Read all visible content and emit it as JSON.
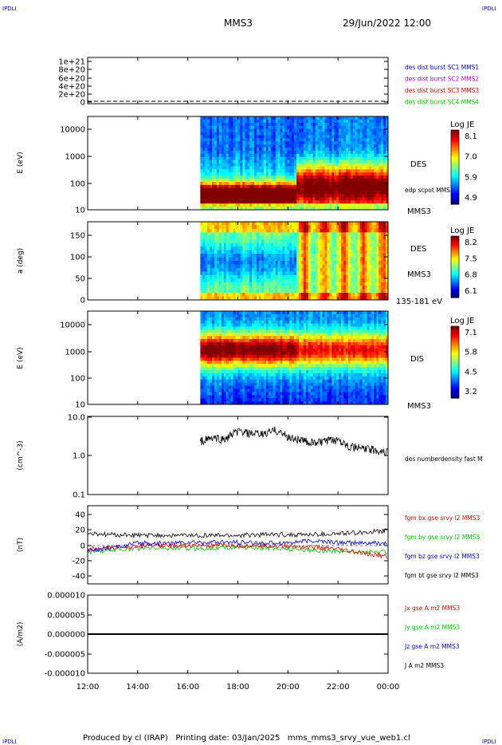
{
  "corner_label": "IPDLI",
  "header": {
    "title": "MMS3",
    "datetime": "29/Jun/2022 12:00"
  },
  "footer": "Produced by cl (IRAP)   Printing date: 03/Jan/2025   mms_mms3_srvy_vue_web1.cl",
  "x_ticks": [
    "12:00",
    "14:00",
    "16:00",
    "18:00",
    "20:00",
    "22:00",
    "00:00"
  ],
  "colors": {
    "blue": "#0000ee",
    "magenta": "#cc00cc",
    "red": "#ee0000",
    "green": "#00cc00",
    "black": "#000000"
  },
  "panels": {
    "dist": {
      "y_ticks": [
        "1e+21",
        "8e+20",
        "6e+20",
        "4e+20",
        "2e+20",
        "0"
      ],
      "legend": [
        {
          "text": "des dist burst SC1 MMS1",
          "color": "#0000ee"
        },
        {
          "text": "des dist burst SC2 MMS2",
          "color": "#cc00cc"
        },
        {
          "text": "des dist burst SC3 MMS3",
          "color": "#ee0000"
        },
        {
          "text": "des dist burst SC4 MMS4",
          "color": "#00cc00"
        }
      ]
    },
    "des_e": {
      "ylabel": "E (eV)",
      "y_ticks": [
        "10000",
        "1000",
        "100",
        "10"
      ],
      "label1": "DES",
      "label2": "edp scpot MMS3",
      "label3": "MMS3",
      "cbar": {
        "title": "Log JE",
        "ticks": [
          "8.1",
          "7.0",
          "5.9",
          "4.9"
        ]
      }
    },
    "des_pa": {
      "ylabel": "a (deg)",
      "y_ticks": [
        "150",
        "100",
        "50",
        "0"
      ],
      "label1": "DES",
      "label2": "MMS3",
      "label3": "135-181 eV",
      "cbar": {
        "title": "Log JE",
        "ticks": [
          "8.2",
          "7.5",
          "6.8",
          "6.1"
        ]
      }
    },
    "dis_e": {
      "ylabel": "E (eV)",
      "y_ticks": [
        "10000",
        "1000",
        "100",
        "10"
      ],
      "label1": "DIS",
      "label2": "MMS3",
      "cbar": {
        "title": "Log JE",
        "ticks": [
          "7.1",
          "5.8",
          "4.5",
          "3.2"
        ]
      }
    },
    "density": {
      "ylabel": "(cm^-3)",
      "y_ticks": [
        "10.0",
        "1.0",
        "0.1"
      ],
      "legend": "des numberdensity fast M"
    },
    "bfield": {
      "ylabel": "(nT)",
      "y_ticks": [
        "40",
        "20",
        "0",
        "-20",
        "-40"
      ],
      "legend": [
        {
          "text": "fgm bx gse srvy l2 MMS3",
          "color": "#ee0000"
        },
        {
          "text": "fgm by gse srvy l2 MMS3",
          "color": "#00cc00"
        },
        {
          "text": "fgm bz gse srvy l2 MMS3",
          "color": "#0000ee"
        },
        {
          "text": "fgm bt gse srvy l2 MMS3",
          "color": "#000000"
        }
      ]
    },
    "current": {
      "ylabel": "(A/m2)",
      "y_ticks": [
        "0.000010",
        "0.000005",
        "0.000000",
        "-0.000005",
        "-0.000010"
      ],
      "legend": [
        {
          "text": "Jx gse A m2 MMS3",
          "color": "#ee0000"
        },
        {
          "text": "Jy gse A m2 MMS3",
          "color": "#00cc00"
        },
        {
          "text": "Jz gse A m2 MMS3",
          "color": "#0000ee"
        },
        {
          "text": "J A m2 MMS3",
          "color": "#000000"
        }
      ]
    }
  },
  "chart_data": [
    {
      "type": "line",
      "title": "",
      "ylabel": "",
      "ylim": [
        0,
        1e+21
      ],
      "x": [
        "12:00",
        "00:00"
      ],
      "series": [
        {
          "name": "des dist burst SC3 MMS3",
          "values": [
            0,
            0
          ]
        }
      ]
    },
    {
      "type": "heatmap",
      "ylabel": "E (eV)",
      "xlim": [
        "12:00",
        "00:00"
      ],
      "data_start": "16:30",
      "ylim": [
        10,
        20000
      ],
      "log_y": true,
      "colorbar": {
        "title": "Log JE",
        "range": [
          4.9,
          8.1
        ]
      },
      "peak_energy_eV": [
        300,
        60
      ]
    },
    {
      "type": "heatmap",
      "ylabel": "a (deg)",
      "xlim": [
        "12:00",
        "00:00"
      ],
      "data_start": "16:30",
      "ylim": [
        0,
        180
      ],
      "colorbar": {
        "title": "Log JE",
        "range": [
          6.1,
          8.2
        ]
      },
      "energy_range": "135-181 eV"
    },
    {
      "type": "heatmap",
      "ylabel": "E (eV)",
      "xlim": [
        "12:00",
        "00:00"
      ],
      "data_start": "16:30",
      "ylim": [
        10,
        20000
      ],
      "log_y": true,
      "colorbar": {
        "title": "Log JE",
        "range": [
          3.2,
          7.1
        ]
      },
      "peak_energy_eV": 1200
    },
    {
      "type": "line",
      "ylabel": "(cm^-3)",
      "log_y": true,
      "ylim": [
        0.1,
        10
      ],
      "x": [
        "16:30",
        "17:00",
        "17:30",
        "18:00",
        "18:30",
        "19:00",
        "19:30",
        "20:00",
        "20:30",
        "21:00",
        "21:30",
        "22:00",
        "22:30",
        "23:00",
        "23:30",
        "00:00"
      ],
      "series": [
        {
          "name": "des numberdensity fast M",
          "values": [
            2.4,
            2.8,
            2.6,
            4.2,
            3.6,
            3.5,
            4.5,
            3.0,
            2.5,
            2.1,
            2.3,
            2.6,
            1.7,
            1.5,
            1.4,
            1.2
          ]
        }
      ]
    },
    {
      "type": "line",
      "ylabel": "(nT)",
      "ylim": [
        -50,
        50
      ],
      "x": [
        "12:00",
        "13:00",
        "14:00",
        "15:00",
        "16:00",
        "17:00",
        "18:00",
        "19:00",
        "20:00",
        "21:00",
        "22:00",
        "23:00",
        "00:00"
      ],
      "series": [
        {
          "name": "fgm bx gse srvy l2 MMS3",
          "values": [
            -5,
            -3,
            0,
            0,
            0,
            0,
            0,
            0,
            -1,
            -2,
            -5,
            -10,
            -14
          ]
        },
        {
          "name": "fgm by gse srvy l2 MMS3",
          "values": [
            -8,
            -5,
            -4,
            -3,
            -4,
            -3,
            -2,
            -3,
            -4,
            -6,
            -7,
            -8,
            -8
          ]
        },
        {
          "name": "fgm bz gse srvy l2 MMS3",
          "values": [
            -6,
            -3,
            3,
            3,
            4,
            4,
            4,
            3,
            4,
            6,
            4,
            3,
            3
          ]
        },
        {
          "name": "fgm bt gse srvy l2 MMS3",
          "values": [
            15,
            14,
            13,
            13,
            13,
            13,
            13,
            14,
            14,
            14,
            15,
            17,
            19
          ]
        }
      ]
    },
    {
      "type": "line",
      "ylabel": "(A/m2)",
      "ylim": [
        -1e-05,
        1e-05
      ],
      "x": [
        "12:00",
        "00:00"
      ],
      "series": [
        {
          "name": "J A m2 MMS3",
          "values": [
            0,
            0
          ]
        }
      ]
    }
  ]
}
